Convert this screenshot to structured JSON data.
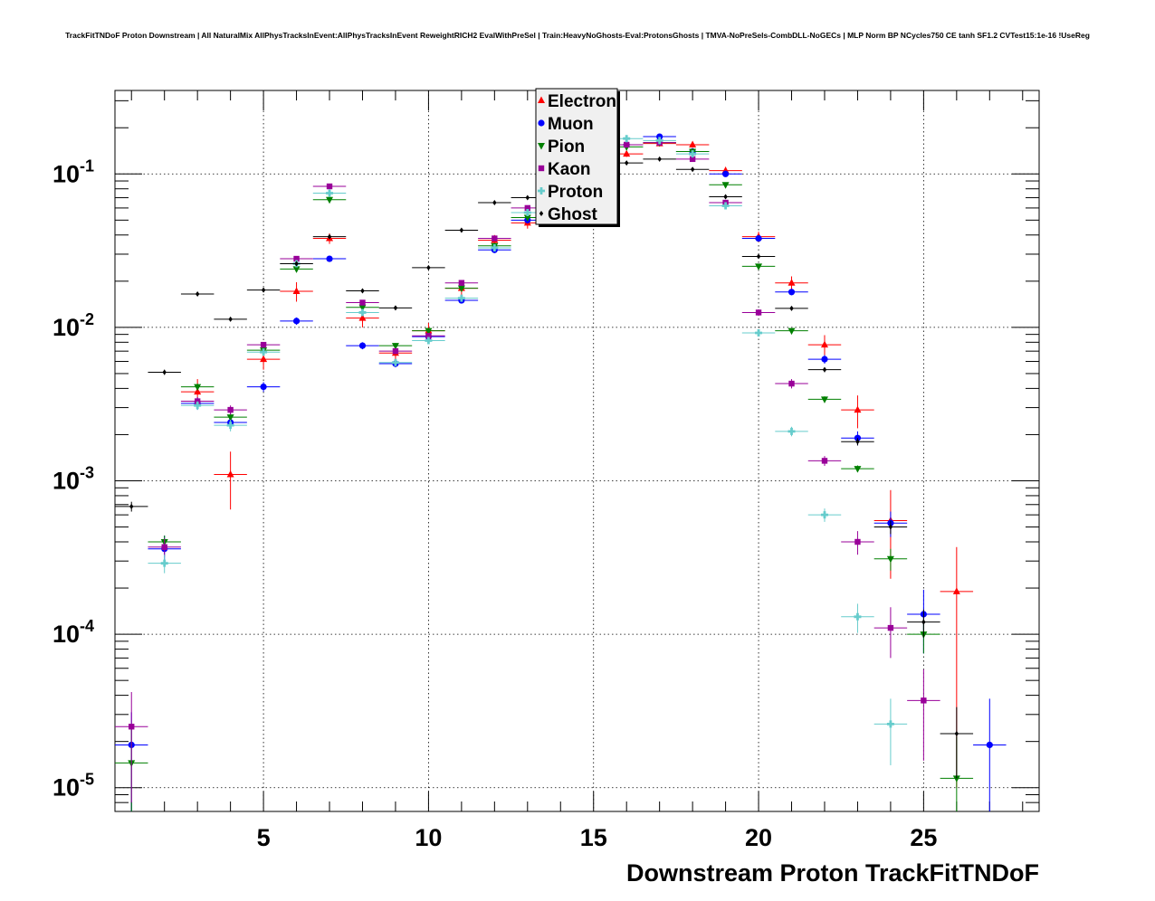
{
  "chart_data": {
    "type": "scatter",
    "title": "TrackFitTNDoF Proton Downstream | All NaturalMix AllPhysTracksInEvent:AllPhysTracksInEvent ReweightRICH2 EvalWithPreSel | Train:HeavyNoGhosts-Eval:ProtonsGhosts | TMVA-NoPreSels-CombDLL-NoGECs | MLP Norm BP NCycles750 CE tanh SF1.2 CVTest15:1e-16 !UseReg",
    "xlabel": "Downstream Proton TrackFitTNDoF",
    "ylabel": "",
    "xlim": [
      0.5,
      28.5
    ],
    "ylim": [
      7e-06,
      0.35
    ],
    "y_scale": "log",
    "grid": true,
    "legend_position": "top-center",
    "x_ticks": [
      5,
      10,
      15,
      20,
      25
    ],
    "y_ticks": [
      {
        "value": 1e-05,
        "base": "10",
        "exp": "-5"
      },
      {
        "value": 0.0001,
        "base": "10",
        "exp": "-4"
      },
      {
        "value": 0.001,
        "base": "10",
        "exp": "-3"
      },
      {
        "value": 0.01,
        "base": "10",
        "exp": "-2"
      },
      {
        "value": 0.1,
        "base": "10",
        "exp": "-1"
      }
    ],
    "series": [
      {
        "name": "Electron",
        "color": "#ff0000",
        "marker": "triangle-up",
        "x": [
          3,
          4,
          5,
          6,
          7,
          8,
          9,
          10,
          11,
          12,
          13,
          16,
          17,
          18,
          19,
          20,
          21,
          22,
          23,
          24,
          26
        ],
        "y": [
          0.0038,
          0.0011,
          0.0062,
          0.0172,
          0.038,
          0.0115,
          0.0068,
          0.0095,
          0.018,
          0.037,
          0.048,
          0.135,
          0.158,
          0.155,
          0.105,
          0.039,
          0.0195,
          0.0077,
          0.0029,
          0.00055,
          0.00019
        ],
        "err": [
          0.0008,
          0.00045,
          0.0009,
          0.0025,
          0.003,
          0.0015,
          0.001,
          0.0012,
          0.002,
          0.003,
          0.004,
          0.006,
          0.007,
          0.007,
          0.006,
          0.003,
          0.002,
          0.0012,
          0.0007,
          0.00032,
          0.00018
        ]
      },
      {
        "name": "Muon",
        "color": "#0000ff",
        "marker": "circle",
        "x": [
          1,
          2,
          3,
          4,
          5,
          6,
          7,
          8,
          9,
          10,
          11,
          12,
          13,
          16,
          17,
          18,
          19,
          20,
          21,
          22,
          23,
          24,
          25,
          27
        ],
        "y": [
          1.9e-05,
          0.00036,
          0.0032,
          0.0024,
          0.0041,
          0.011,
          0.028,
          0.0076,
          0.0058,
          0.0087,
          0.015,
          0.032,
          0.05,
          0.155,
          0.175,
          0.14,
          0.1,
          0.038,
          0.017,
          0.0062,
          0.0019,
          0.00053,
          0.000135,
          1.9e-05
        ],
        "err": [
          1.2e-05,
          8e-05,
          0.0003,
          0.0002,
          0.0003,
          0.0006,
          0.001,
          0.0004,
          0.0003,
          0.0004,
          0.0006,
          0.001,
          0.0015,
          0.003,
          0.003,
          0.003,
          0.002,
          0.0012,
          0.0008,
          0.0004,
          0.0002,
          0.0001,
          6e-05,
          1.9e-05
        ]
      },
      {
        "name": "Pion",
        "color": "#008000",
        "marker": "triangle-down",
        "x": [
          1,
          2,
          3,
          4,
          5,
          6,
          7,
          8,
          9,
          10,
          11,
          12,
          13,
          16,
          17,
          18,
          19,
          20,
          21,
          22,
          23,
          24,
          25,
          26
        ],
        "y": [
          1.45e-05,
          0.0004,
          0.0041,
          0.0026,
          0.0071,
          0.024,
          0.068,
          0.0135,
          0.0076,
          0.0095,
          0.018,
          0.034,
          0.052,
          0.15,
          0.16,
          0.14,
          0.085,
          0.025,
          0.0095,
          0.0034,
          0.0012,
          0.00031,
          0.0001,
          1.15e-05
        ],
        "err": [
          1e-05,
          4e-05,
          0.0002,
          0.0002,
          0.0003,
          0.0008,
          0.002,
          0.0005,
          0.0003,
          0.0004,
          0.0006,
          0.001,
          0.0015,
          0.003,
          0.003,
          0.003,
          0.002,
          0.0008,
          0.0003,
          0.00015,
          6e-05,
          5e-05,
          2.5e-05,
          1e-05
        ]
      },
      {
        "name": "Kaon",
        "color": "#990099",
        "marker": "square",
        "x": [
          1,
          2,
          3,
          4,
          5,
          6,
          7,
          8,
          9,
          10,
          11,
          12,
          13,
          16,
          17,
          18,
          19,
          20,
          21,
          22,
          23,
          24,
          25
        ],
        "y": [
          2.5e-05,
          0.00037,
          0.0033,
          0.0029,
          0.0077,
          0.028,
          0.083,
          0.0145,
          0.007,
          0.0088,
          0.0195,
          0.038,
          0.06,
          0.155,
          0.16,
          0.125,
          0.065,
          0.0125,
          0.0043,
          0.00135,
          0.0004,
          0.00011,
          3.7e-05
        ],
        "err": [
          1.7e-05,
          5e-05,
          0.0002,
          0.0002,
          0.0003,
          0.0008,
          0.002,
          0.0005,
          0.0003,
          0.0004,
          0.0006,
          0.001,
          0.0015,
          0.003,
          0.003,
          0.003,
          0.002,
          0.0006,
          0.0003,
          0.0001,
          7e-05,
          4e-05,
          2.2e-05
        ]
      },
      {
        "name": "Proton",
        "color": "#66cccc",
        "marker": "cross",
        "x": [
          2,
          3,
          4,
          5,
          6,
          7,
          8,
          9,
          10,
          11,
          12,
          13,
          16,
          17,
          18,
          19,
          20,
          21,
          22,
          23,
          24
        ],
        "y": [
          0.00029,
          0.0031,
          0.0023,
          0.0069,
          0.026,
          0.075,
          0.0125,
          0.0059,
          0.0082,
          0.0155,
          0.033,
          0.056,
          0.17,
          0.165,
          0.135,
          0.062,
          0.0092,
          0.0021,
          0.0006,
          0.00013,
          2.6e-05
        ],
        "err": [
          4e-05,
          0.0002,
          0.0002,
          0.0003,
          0.0008,
          0.002,
          0.0005,
          0.0003,
          0.0004,
          0.0006,
          0.001,
          0.0015,
          0.003,
          0.003,
          0.003,
          0.002,
          0.0004,
          0.00015,
          6e-05,
          2.8e-05,
          1.2e-05
        ]
      },
      {
        "name": "Ghost",
        "color": "#000000",
        "marker": "diamond",
        "x": [
          1,
          2,
          3,
          4,
          5,
          6,
          7,
          8,
          9,
          10,
          11,
          12,
          13,
          16,
          17,
          18,
          19,
          20,
          21,
          22,
          23,
          24,
          25,
          26
        ],
        "y": [
          0.00068,
          0.0051,
          0.0165,
          0.0113,
          0.0175,
          0.026,
          0.039,
          0.0173,
          0.0134,
          0.0245,
          0.043,
          0.065,
          0.07,
          0.118,
          0.125,
          0.107,
          0.071,
          0.029,
          0.0133,
          0.0053,
          0.0018,
          0.0005,
          0.00012,
          2.25e-05
        ],
        "err": [
          5e-05,
          0.0002,
          0.0004,
          0.0003,
          0.0004,
          0.0006,
          0.0008,
          0.0004,
          0.0003,
          0.0005,
          0.0008,
          0.001,
          0.0012,
          0.002,
          0.002,
          0.002,
          0.0014,
          0.0007,
          0.0004,
          0.0002,
          0.0001,
          5e-05,
          2.5e-05,
          1.1e-05
        ]
      }
    ]
  }
}
